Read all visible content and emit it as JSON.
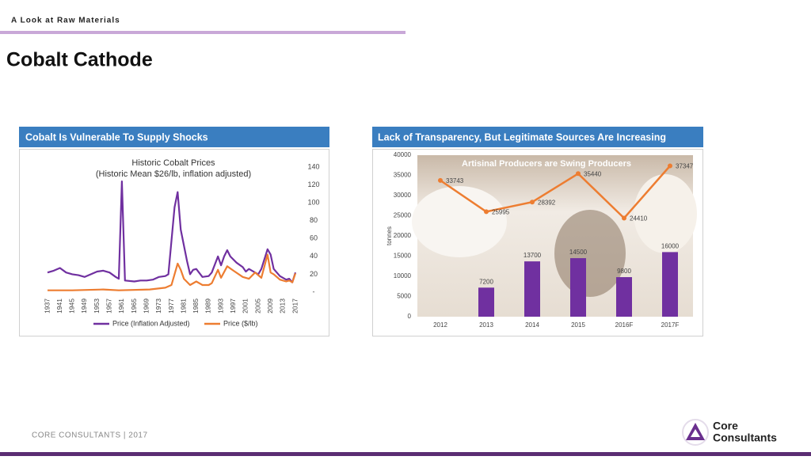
{
  "header": {
    "section": "A Look at Raw Materials",
    "title": "Cobalt Cathode"
  },
  "panels": [
    {
      "heading": "Cobalt Is Vulnerable To Supply Shocks"
    },
    {
      "heading": "Lack of Transparency,  But Legitimate Sources Are Increasing"
    }
  ],
  "footer": {
    "text": "CORE CONSULTANTS  | 2017",
    "logo": [
      "Core",
      "Consultants"
    ]
  },
  "chart_data": [
    {
      "type": "line",
      "title": "Historic Cobalt Prices",
      "subtitle": "(Historic Mean $26/lb, inflation adjusted)",
      "xlim": [
        1937,
        2017
      ],
      "xticks": [
        1937,
        1941,
        1945,
        1949,
        1953,
        1957,
        1961,
        1965,
        1969,
        1973,
        1977,
        1981,
        1985,
        1989,
        1993,
        1997,
        2001,
        2005,
        2009,
        2013,
        2017
      ],
      "ylim": [
        0,
        140
      ],
      "yticks": [
        {
          "value": 0,
          "label": "-"
        },
        20,
        40,
        60,
        80,
        100,
        120,
        140
      ],
      "legend": "bottom",
      "series": [
        {
          "name": "Price (Inflation Adjusted)",
          "color": "#7030a0",
          "x": [
            1937,
            1939,
            1941,
            1943,
            1945,
            1947,
            1949,
            1951,
            1953,
            1955,
            1957,
            1959,
            1960,
            1961,
            1962,
            1965,
            1967,
            1969,
            1971,
            1973,
            1975,
            1976,
            1978,
            1979,
            1980,
            1982,
            1983,
            1984,
            1985,
            1987,
            1989,
            1990,
            1992,
            1993,
            1994,
            1995,
            1996,
            1998,
            2000,
            2001,
            2002,
            2003,
            2005,
            2006,
            2008,
            2009,
            2010,
            2012,
            2014,
            2015,
            2016,
            2017
          ],
          "values": [
            22,
            24,
            27,
            22,
            20,
            19,
            17,
            20,
            23,
            24,
            22,
            17,
            15,
            124,
            13,
            12,
            13,
            13,
            14,
            17,
            18,
            20,
            95,
            112,
            70,
            35,
            20,
            25,
            26,
            17,
            18,
            22,
            40,
            30,
            40,
            47,
            40,
            33,
            28,
            23,
            26,
            24,
            20,
            26,
            48,
            42,
            26,
            18,
            14,
            15,
            11,
            22
          ]
        },
        {
          "name": "Price ($/lb)",
          "color": "#ed7d31",
          "x": [
            1937,
            1945,
            1955,
            1960,
            1970,
            1975,
            1977,
            1979,
            1980,
            1981,
            1983,
            1985,
            1987,
            1989,
            1990,
            1992,
            1993,
            1995,
            1997,
            2000,
            2002,
            2004,
            2006,
            2008,
            2009,
            2010,
            2012,
            2014,
            2015,
            2016,
            2017
          ],
          "values": [
            2,
            2,
            3,
            2,
            3,
            5,
            8,
            32,
            25,
            15,
            8,
            12,
            8,
            8,
            10,
            25,
            16,
            29,
            24,
            17,
            15,
            22,
            16,
            42,
            22,
            20,
            14,
            12,
            13,
            11,
            21
          ]
        }
      ]
    },
    {
      "type": "combo",
      "title": "Artisinal Producers are Swing Producers",
      "y_label": "tonnes",
      "categories": [
        "2012",
        "2013",
        "2014",
        "2015",
        "2016F",
        "2017F"
      ],
      "ylim": [
        0,
        40000
      ],
      "yticks": [
        0,
        5000,
        10000,
        15000,
        20000,
        25000,
        30000,
        35000,
        40000
      ],
      "series": [
        {
          "type": "bar",
          "color": "#7030a0",
          "values": [
            null,
            7200,
            13700,
            14500,
            9800,
            16000
          ]
        },
        {
          "type": "line",
          "color": "#ed7d31",
          "values": [
            33743,
            25995,
            28392,
            35440,
            24410,
            37347
          ]
        }
      ]
    }
  ]
}
